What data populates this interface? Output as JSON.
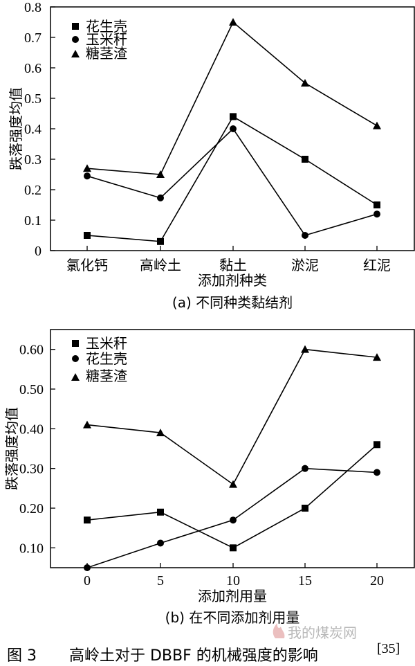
{
  "figure_caption": {
    "label": "图 3",
    "text": "高岭土对于 DBBF 的机械强度的影响",
    "ref": "[35]"
  },
  "watermark": {
    "text": "我的煤炭网",
    "color": "#b9b9b9"
  },
  "chart_data": [
    {
      "type": "line",
      "subcaption": "(a) 不同种类黏结剂",
      "xlabel": "添加剂种类",
      "ylabel": "跌落强度均值",
      "categories": [
        "氯化钙",
        "高岭土",
        "黏土",
        "淤泥",
        "红泥"
      ],
      "ylim": [
        0,
        0.8
      ],
      "yticks": [
        "0",
        "0.1",
        "0.2",
        "0.3",
        "0.4",
        "0.5",
        "0.6",
        "0.7",
        "0.8"
      ],
      "legend_position": "top-left",
      "series": [
        {
          "name": "花生壳",
          "marker": "square",
          "values": [
            0.05,
            0.03,
            0.44,
            0.3,
            0.15
          ]
        },
        {
          "name": "玉米秆",
          "marker": "circle",
          "values": [
            0.245,
            0.173,
            0.4,
            0.05,
            0.12
          ]
        },
        {
          "name": "糖茎渣",
          "marker": "triangle",
          "values": [
            0.27,
            0.25,
            0.75,
            0.55,
            0.41
          ]
        }
      ]
    },
    {
      "type": "line",
      "subcaption": "(b) 在不同添加剂用量",
      "xlabel": "添加剂用量",
      "ylabel": "跌落强度均值",
      "x": [
        0,
        5,
        10,
        15,
        20
      ],
      "xticks": [
        "0",
        "5",
        "10",
        "15",
        "20"
      ],
      "ylim": [
        0.05,
        0.65
      ],
      "yticks": [
        "0.10",
        "0.20",
        "0.30",
        "0.40",
        "0.50",
        "0.60"
      ],
      "ytick_values": [
        0.1,
        0.2,
        0.3,
        0.4,
        0.5,
        0.6
      ],
      "legend_position": "top-left",
      "series": [
        {
          "name": "玉米秆",
          "marker": "square",
          "values": [
            0.17,
            0.19,
            0.1,
            0.2,
            0.36
          ]
        },
        {
          "name": "花生壳",
          "marker": "circle",
          "values": [
            0.05,
            0.112,
            0.17,
            0.3,
            0.29
          ]
        },
        {
          "name": "糖茎渣",
          "marker": "triangle",
          "values": [
            0.41,
            0.39,
            0.26,
            0.6,
            0.58
          ]
        }
      ]
    }
  ]
}
